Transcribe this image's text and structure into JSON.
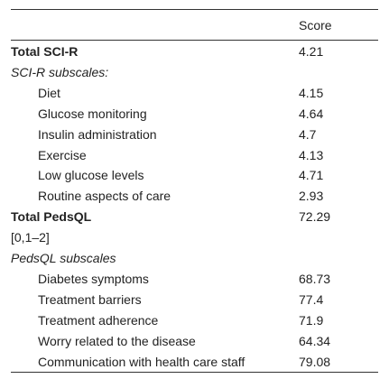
{
  "table": {
    "header": {
      "score": "Score"
    },
    "rows": [
      {
        "label": "Total SCI-R",
        "value": "4.21"
      },
      {
        "label": "SCI-R subscales:"
      },
      {
        "label": "Diet",
        "value": "4.15"
      },
      {
        "label": "Glucose monitoring",
        "value": "4.64"
      },
      {
        "label": "Insulin administration",
        "value": "4.7"
      },
      {
        "label": "Exercise",
        "value": "4.13"
      },
      {
        "label": "Low glucose levels",
        "value": "4.71"
      },
      {
        "label": "Routine aspects of care",
        "value": "2.93"
      },
      {
        "label": "Total PedsQL",
        "value": "72.29"
      },
      {
        "label": "[0,1–2]"
      },
      {
        "label": "PedsQL subscales"
      },
      {
        "label": "Diabetes symptoms",
        "value": "68.73"
      },
      {
        "label": "Treatment barriers",
        "value": "77.4"
      },
      {
        "label": "Treatment adherence",
        "value": "71.9"
      },
      {
        "label": "Worry related to the disease",
        "value": "64.34"
      },
      {
        "label": "Communication with health care staff",
        "value": "79.08"
      }
    ]
  }
}
